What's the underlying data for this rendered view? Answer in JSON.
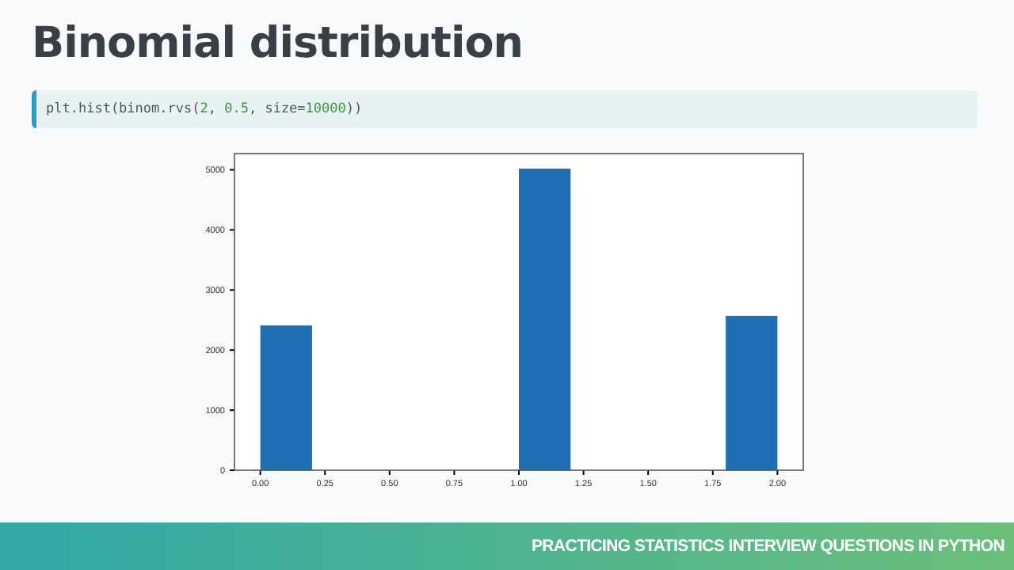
{
  "chart_data": {
    "type": "histogram",
    "title": "Binomial distribution",
    "subtitle": "plt.hist(binom.rvs(2, 0.5, size=10000))",
    "bins": [
      0,
      0.2,
      0.4,
      0.6,
      0.8,
      1.0,
      1.2,
      1.4,
      1.6,
      1.8,
      2.0
    ],
    "values": [
      2410,
      0,
      0,
      0,
      0,
      5020,
      0,
      0,
      0,
      2570
    ],
    "color": "#1f6fb4",
    "xlim": [
      -0.1,
      2.1
    ],
    "xticks": [
      {
        "value": 0,
        "label": "0.00"
      },
      {
        "value": 0.25,
        "label": "0.25"
      },
      {
        "value": 0.5,
        "label": "0.50"
      },
      {
        "value": 0.75,
        "label": "0.75"
      },
      {
        "value": 1,
        "label": "1.00"
      },
      {
        "value": 1.25,
        "label": "1.25"
      },
      {
        "value": 1.5,
        "label": "1.50"
      },
      {
        "value": 1.75,
        "label": "1.75"
      },
      {
        "value": 2,
        "label": "2.00"
      }
    ],
    "ylim": [
      0,
      5270
    ],
    "yticks": [
      0,
      1000,
      2000,
      3000,
      4000,
      5000
    ],
    "grid": false,
    "annotations": [
      "PRACTICING STATISTICS INTERVIEW QUESTIONS IN PYTHON"
    ]
  }
}
